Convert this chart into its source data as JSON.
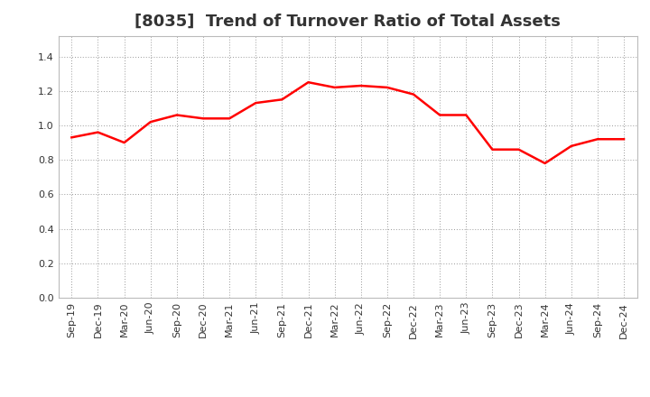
{
  "title": "[8035]  Trend of Turnover Ratio of Total Assets",
  "x_labels": [
    "Sep-19",
    "Dec-19",
    "Mar-20",
    "Jun-20",
    "Sep-20",
    "Dec-20",
    "Mar-21",
    "Jun-21",
    "Sep-21",
    "Dec-21",
    "Mar-22",
    "Jun-22",
    "Sep-22",
    "Dec-22",
    "Mar-23",
    "Jun-23",
    "Sep-23",
    "Dec-23",
    "Mar-24",
    "Jun-24",
    "Sep-24",
    "Dec-24"
  ],
  "values": [
    0.93,
    0.96,
    0.9,
    1.02,
    1.06,
    1.04,
    1.04,
    1.13,
    1.15,
    1.25,
    1.22,
    1.23,
    1.22,
    1.18,
    1.06,
    1.06,
    0.86,
    0.86,
    0.78,
    0.88,
    0.92,
    0.92
  ],
  "line_color": "#ff0000",
  "background_color": "#ffffff",
  "grid_color": "#999999",
  "spine_color": "#bbbbbb",
  "ylim": [
    0.0,
    1.52
  ],
  "yticks": [
    0.0,
    0.2,
    0.4,
    0.6,
    0.8,
    1.0,
    1.2,
    1.4
  ],
  "title_fontsize": 13,
  "tick_fontsize": 8,
  "line_width": 1.8,
  "title_color": "#333333",
  "tick_color": "#333333"
}
